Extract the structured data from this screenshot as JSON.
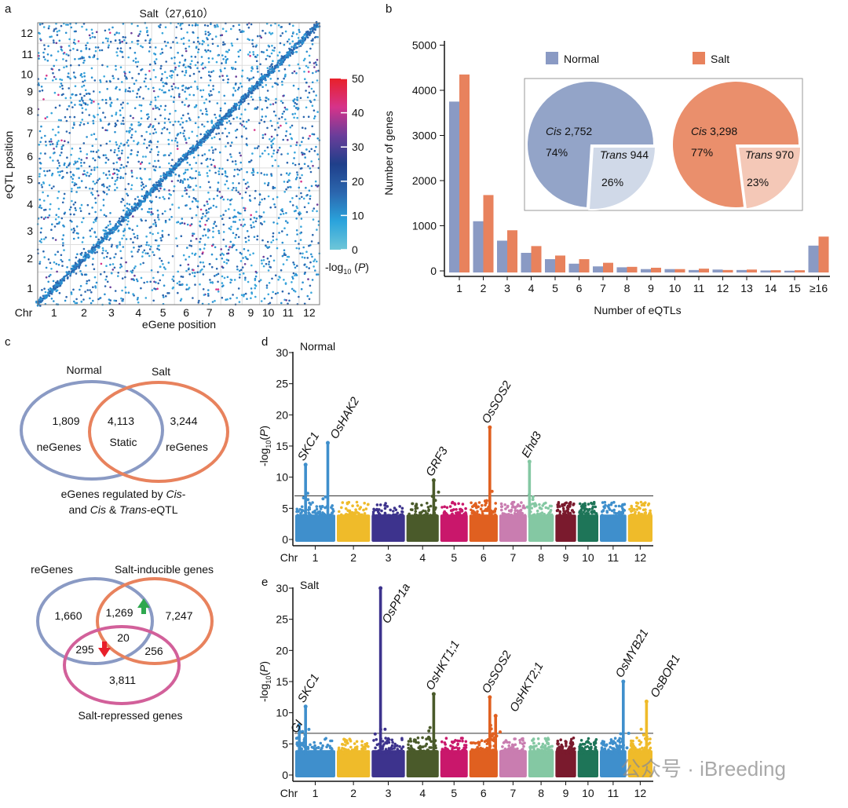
{
  "panel_labels": {
    "a": "a",
    "b": "b",
    "c": "c",
    "d": "d",
    "e": "e"
  },
  "watermark": "公众号 · iBreeding",
  "chart_data": [
    {
      "id": "a",
      "type": "scatter",
      "title": "Salt（27,610）",
      "xlabel": "eGene position",
      "ylabel": "eQTL position",
      "chr_label": "Chr",
      "x_ticks": [
        "1",
        "2",
        "3",
        "4",
        "5",
        "6",
        "7",
        "8",
        "9",
        "10",
        "11",
        "12"
      ],
      "y_ticks": [
        "1",
        "2",
        "3",
        "4",
        "5",
        "6",
        "7",
        "8",
        "9",
        "10",
        "11",
        "12"
      ],
      "grid": true,
      "colorbar": {
        "label_prefix": "-log",
        "label_sub": "10",
        "label_var": "P",
        "ticks": [
          "0",
          "10",
          "20",
          "30",
          "40",
          "50"
        ],
        "range": [
          0,
          50
        ],
        "colors": [
          "#6ec6d8",
          "#2aa3dc",
          "#2b66ae",
          "#1f3f8a",
          "#6a3d9a",
          "#d6338a",
          "#e8202a"
        ]
      }
    },
    {
      "id": "b",
      "type": "bar",
      "categories": [
        "1",
        "2",
        "3",
        "4",
        "5",
        "6",
        "7",
        "8",
        "9",
        "10",
        "11",
        "12",
        "13",
        "14",
        "15",
        "≥16"
      ],
      "series": [
        {
          "name": "Normal",
          "color": "#8a9ac4",
          "values": [
            3750,
            1100,
            670,
            400,
            260,
            160,
            100,
            80,
            40,
            40,
            20,
            30,
            20,
            10,
            5,
            560
          ]
        },
        {
          "name": "Salt",
          "color": "#e8825d",
          "values": [
            4350,
            1680,
            900,
            550,
            340,
            260,
            180,
            90,
            70,
            40,
            50,
            20,
            30,
            15,
            15,
            760
          ]
        }
      ],
      "xlabel": "Number of eQTLs",
      "ylabel": "Number of genes",
      "ylim": [
        0,
        5000
      ],
      "y_ticks": [
        "0",
        "1000",
        "2000",
        "3000",
        "4000",
        "5000"
      ],
      "legend": "top",
      "inset_pies": [
        {
          "condition": "Normal",
          "cis_label": "Cis",
          "cis_count": "2,752",
          "cis_pct": "74%",
          "trans_label": "Trans",
          "trans_count": "944",
          "trans_pct": "26%",
          "trans_fraction": 0.26,
          "cis_color": "#93a4c8",
          "trans_color": "#d0d9e8"
        },
        {
          "condition": "Salt",
          "cis_label": "Cis",
          "cis_count": "3,298",
          "cis_pct": "77%",
          "trans_label": "Trans",
          "trans_count": "970",
          "trans_pct": "23%",
          "trans_fraction": 0.23,
          "cis_color": "#ea8f6c",
          "trans_color": "#f4c8b7"
        }
      ]
    },
    {
      "id": "d",
      "type": "scatter",
      "subtype": "manhattan",
      "title": "Normal",
      "ylabel_prefix": "-log",
      "ylabel_sub": "10",
      "ylabel_var": "P",
      "chr_label": "Chr",
      "x_ticks": [
        "1",
        "2",
        "3",
        "4",
        "5",
        "6",
        "7",
        "8",
        "9",
        "10",
        "11",
        "12"
      ],
      "ylim": [
        0,
        30
      ],
      "y_ticks": [
        "0",
        "5",
        "10",
        "15",
        "20",
        "25",
        "30"
      ],
      "threshold": 7,
      "chr_colors": [
        "#3f8fcc",
        "#efbb2a",
        "#3d338d",
        "#4a5a2a",
        "#c9176b",
        "#e06020",
        "#c97db0",
        "#84c8a3",
        "#7a1a2d",
        "#1e7558",
        "#3f8fcc",
        "#efbb2a"
      ],
      "peaks": [
        {
          "gene": "SKC1",
          "chr": 1,
          "pos_mb": 11.5,
          "value": 12,
          "label_color": "#111111"
        },
        {
          "gene": "OsHAK2",
          "chr": 1,
          "pos_mb": 34.5,
          "value": 15.5,
          "label_color": "#111111"
        },
        {
          "gene": "GRF3",
          "chr": 4,
          "pos_mb": 29,
          "value": 9.5,
          "label_color": "#111111"
        },
        {
          "gene": "OsSOS2",
          "chr": 6,
          "pos_mb": 22,
          "value": 18,
          "label_color": "#111111"
        },
        {
          "gene": "Ehd3",
          "chr": 8,
          "pos_mb": 2,
          "value": 12.5,
          "label_color": "#111111"
        }
      ]
    },
    {
      "id": "e",
      "type": "scatter",
      "subtype": "manhattan",
      "title": "Salt",
      "ylabel_prefix": "-log",
      "ylabel_sub": "10",
      "ylabel_var": "P",
      "chr_label": "Chr",
      "x_ticks": [
        "1",
        "2",
        "3",
        "4",
        "5",
        "6",
        "7",
        "8",
        "9",
        "10",
        "11",
        "12"
      ],
      "ylim": [
        0,
        30
      ],
      "y_ticks": [
        "0",
        "5",
        "10",
        "15",
        "20",
        "25",
        "30"
      ],
      "threshold": 6.7,
      "chr_colors": [
        "#3f8fcc",
        "#efbb2a",
        "#3d338d",
        "#4a5a2a",
        "#c9176b",
        "#e06020",
        "#c97db0",
        "#84c8a3",
        "#7a1a2d",
        "#1e7558",
        "#3f8fcc",
        "#efbb2a"
      ],
      "peaks": [
        {
          "gene": "GI",
          "chr": 1,
          "pos_mb": 5,
          "value": 8,
          "label_color": "#e8202a"
        },
        {
          "gene": "SKC1",
          "chr": 1,
          "pos_mb": 11.5,
          "value": 11,
          "label_color": "#111111"
        },
        {
          "gene": "OsPP1a",
          "chr": 3,
          "pos_mb": 10,
          "value": 30,
          "label_color": "#e8202a"
        },
        {
          "gene": "OsHKT1;1",
          "chr": 4,
          "pos_mb": 29,
          "value": 13,
          "label_color": "#e8202a"
        },
        {
          "gene": "OsSOS2",
          "chr": 6,
          "pos_mb": 22,
          "value": 12.5,
          "label_color": "#111111"
        },
        {
          "gene": "OsHKT2;1",
          "chr": 6,
          "pos_mb": 28,
          "value": 9.5,
          "label_color": "#e8202a"
        },
        {
          "gene": "OsMYB21",
          "chr": 11,
          "pos_mb": 25,
          "value": 15,
          "label_color": "#e8202a"
        },
        {
          "gene": "OsBOR1",
          "chr": 12,
          "pos_mb": 20,
          "value": 11.8,
          "label_color": "#e8202a"
        }
      ]
    }
  ],
  "venn": {
    "top": {
      "sets": [
        {
          "name": "Normal",
          "color": "#8a9ac4"
        },
        {
          "name": "Salt",
          "color": "#e8825d"
        }
      ],
      "only_normal": "1,809",
      "only_normal_label": "neGenes",
      "both": "4,113",
      "both_label": "Static",
      "only_salt": "3,244",
      "only_salt_label": "reGenes",
      "caption_1a": "eGenes regulated by ",
      "caption_1b": "Cis",
      "caption_1c": "-",
      "caption_2a": "and ",
      "caption_2b": "Cis",
      "caption_2c": " & ",
      "caption_2d": "Trans",
      "caption_2e": "-eQTL"
    },
    "bottom": {
      "sets": [
        {
          "name": "reGenes",
          "color": "#8a9ac4"
        },
        {
          "name": "Salt-inducible genes",
          "color": "#e8825d"
        },
        {
          "name": "Salt-repressed genes",
          "color": "#d2609a"
        }
      ],
      "only_re": "1,660",
      "re_inducible": "1,269",
      "only_inducible": "7,247",
      "all_three": "20",
      "re_repressed": "295",
      "inducible_repressed": "256",
      "only_repressed": "3,811",
      "up_arrow_color": "#2fa84f",
      "down_arrow_color": "#e8202a"
    }
  }
}
